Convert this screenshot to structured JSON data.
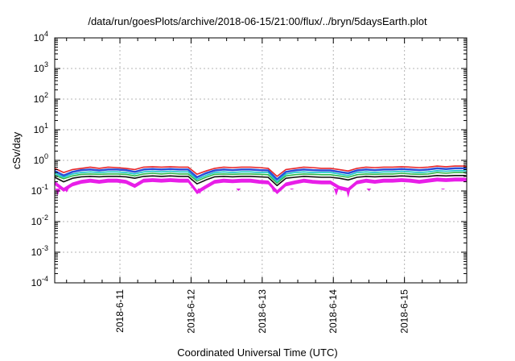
{
  "chart_data": {
    "type": "area",
    "title": "/data/run/goesPlots/archive/2018-06-15/21:00/flux/../bryn/5daysEarth.plot",
    "xlabel": "Coordinated Universal Time (UTC)",
    "ylabel": "cSv/day",
    "yscale": "log",
    "ylim": [
      0.0001,
      10000
    ],
    "y_ticks": [
      {
        "base": "10",
        "exp": "-4",
        "value": 0.0001
      },
      {
        "base": "10",
        "exp": "-3",
        "value": 0.001
      },
      {
        "base": "10",
        "exp": "-2",
        "value": 0.01
      },
      {
        "base": "10",
        "exp": "-1",
        "value": 0.1
      },
      {
        "base": "10",
        "exp": "0",
        "value": 1
      },
      {
        "base": "10",
        "exp": "1",
        "value": 10
      },
      {
        "base": "10",
        "exp": "2",
        "value": 100
      },
      {
        "base": "10",
        "exp": "3",
        "value": 1000
      },
      {
        "base": "10",
        "exp": "4",
        "value": 10000
      }
    ],
    "x_range": [
      "2018-06-10 02:00",
      "2018-06-15 21:00"
    ],
    "x_ticks": [
      "2018-6-11",
      "2018-6-12",
      "2018-6-13",
      "2018-6-14",
      "2018-6-15"
    ],
    "grid": true,
    "x": [
      "2018-06-10 02:00",
      "2018-06-10 05:00",
      "2018-06-10 08:00",
      "2018-06-10 11:00",
      "2018-06-10 14:00",
      "2018-06-10 17:00",
      "2018-06-10 20:00",
      "2018-06-10 23:00",
      "2018-06-11 02:00",
      "2018-06-11 05:00",
      "2018-06-11 08:00",
      "2018-06-11 11:00",
      "2018-06-11 14:00",
      "2018-06-11 17:00",
      "2018-06-11 20:00",
      "2018-06-11 23:00",
      "2018-06-12 02:00",
      "2018-06-12 05:00",
      "2018-06-12 08:00",
      "2018-06-12 11:00",
      "2018-06-12 14:00",
      "2018-06-12 17:00",
      "2018-06-12 20:00",
      "2018-06-12 23:00",
      "2018-06-13 02:00",
      "2018-06-13 05:00",
      "2018-06-13 08:00",
      "2018-06-13 11:00",
      "2018-06-13 14:00",
      "2018-06-13 17:00",
      "2018-06-13 20:00",
      "2018-06-13 23:00",
      "2018-06-14 02:00",
      "2018-06-14 05:00",
      "2018-06-14 08:00",
      "2018-06-14 11:00",
      "2018-06-14 14:00",
      "2018-06-14 17:00",
      "2018-06-14 20:00",
      "2018-06-14 23:00",
      "2018-06-15 02:00",
      "2018-06-15 05:00",
      "2018-06-15 08:00",
      "2018-06-15 11:00",
      "2018-06-15 14:00",
      "2018-06-15 17:00",
      "2018-06-15 20:00",
      "2018-06-15 21:00"
    ],
    "series": [
      {
        "color": "#e8262a",
        "values": [
          0.55,
          0.4,
          0.5,
          0.55,
          0.6,
          0.55,
          0.6,
          0.58,
          0.55,
          0.5,
          0.6,
          0.62,
          0.6,
          0.62,
          0.6,
          0.6,
          0.35,
          0.45,
          0.55,
          0.6,
          0.58,
          0.6,
          0.6,
          0.58,
          0.55,
          0.3,
          0.5,
          0.55,
          0.6,
          0.58,
          0.55,
          0.55,
          0.5,
          0.45,
          0.55,
          0.6,
          0.58,
          0.6,
          0.6,
          0.62,
          0.6,
          0.58,
          0.6,
          0.65,
          0.62,
          0.65,
          0.65,
          0.62
        ]
      },
      {
        "color": "#2a4fd8",
        "values": [
          0.45,
          0.32,
          0.42,
          0.48,
          0.5,
          0.47,
          0.5,
          0.5,
          0.48,
          0.42,
          0.5,
          0.52,
          0.5,
          0.52,
          0.5,
          0.5,
          0.28,
          0.38,
          0.47,
          0.5,
          0.48,
          0.5,
          0.5,
          0.48,
          0.47,
          0.24,
          0.42,
          0.47,
          0.5,
          0.48,
          0.47,
          0.47,
          0.42,
          0.38,
          0.47,
          0.5,
          0.48,
          0.5,
          0.5,
          0.52,
          0.5,
          0.48,
          0.5,
          0.55,
          0.52,
          0.55,
          0.55,
          0.52
        ]
      },
      {
        "color": "#18c8c8",
        "values": [
          0.38,
          0.28,
          0.36,
          0.4,
          0.42,
          0.4,
          0.42,
          0.42,
          0.4,
          0.36,
          0.42,
          0.44,
          0.42,
          0.44,
          0.42,
          0.42,
          0.24,
          0.32,
          0.4,
          0.42,
          0.4,
          0.42,
          0.42,
          0.4,
          0.4,
          0.2,
          0.36,
          0.4,
          0.42,
          0.4,
          0.4,
          0.4,
          0.36,
          0.32,
          0.4,
          0.42,
          0.4,
          0.42,
          0.42,
          0.44,
          0.42,
          0.4,
          0.42,
          0.46,
          0.44,
          0.46,
          0.46,
          0.44
        ]
      },
      {
        "color": "#2fb84a",
        "values": [
          0.33,
          0.25,
          0.31,
          0.35,
          0.36,
          0.35,
          0.36,
          0.36,
          0.35,
          0.31,
          0.36,
          0.38,
          0.36,
          0.38,
          0.36,
          0.36,
          0.21,
          0.28,
          0.35,
          0.36,
          0.35,
          0.36,
          0.36,
          0.35,
          0.34,
          0.18,
          0.31,
          0.34,
          0.36,
          0.35,
          0.34,
          0.34,
          0.31,
          0.28,
          0.34,
          0.36,
          0.35,
          0.36,
          0.36,
          0.38,
          0.36,
          0.35,
          0.36,
          0.4,
          0.38,
          0.4,
          0.4,
          0.38
        ]
      },
      {
        "color": "#111111",
        "values": [
          0.28,
          0.2,
          0.26,
          0.29,
          0.3,
          0.29,
          0.3,
          0.3,
          0.29,
          0.26,
          0.3,
          0.31,
          0.3,
          0.31,
          0.3,
          0.3,
          0.17,
          0.23,
          0.29,
          0.3,
          0.29,
          0.3,
          0.3,
          0.29,
          0.28,
          0.15,
          0.26,
          0.28,
          0.3,
          0.29,
          0.28,
          0.28,
          0.26,
          0.23,
          0.28,
          0.3,
          0.29,
          0.3,
          0.3,
          0.31,
          0.3,
          0.29,
          0.3,
          0.32,
          0.31,
          0.32,
          0.32,
          0.31
        ]
      },
      {
        "color": "#e81ee8",
        "values": [
          0.2,
          0.12,
          0.18,
          0.22,
          0.24,
          0.22,
          0.24,
          0.24,
          0.22,
          0.16,
          0.24,
          0.25,
          0.24,
          0.25,
          0.24,
          0.24,
          0.1,
          0.15,
          0.22,
          0.24,
          0.23,
          0.24,
          0.24,
          0.22,
          0.21,
          0.1,
          0.18,
          0.21,
          0.24,
          0.22,
          0.21,
          0.21,
          0.14,
          0.12,
          0.21,
          0.24,
          0.22,
          0.24,
          0.24,
          0.25,
          0.24,
          0.22,
          0.24,
          0.26,
          0.25,
          0.26,
          0.26,
          0.25
        ]
      }
    ],
    "minimum_dips": [
      {
        "x": "2018-06-10 03:00",
        "value": 0.07
      },
      {
        "x": "2018-06-10 06:00",
        "value": 0.09
      },
      {
        "x": "2018-06-11 07:00",
        "value": 0.12
      },
      {
        "x": "2018-06-12 03:00",
        "value": 0.08
      },
      {
        "x": "2018-06-12 16:00",
        "value": 0.1
      },
      {
        "x": "2018-06-13 04:00",
        "value": 0.09
      },
      {
        "x": "2018-06-13 10:00",
        "value": 0.11
      },
      {
        "x": "2018-06-14 01:00",
        "value": 0.07
      },
      {
        "x": "2018-06-14 05:00",
        "value": 0.06
      },
      {
        "x": "2018-06-14 12:00",
        "value": 0.1
      },
      {
        "x": "2018-06-15 13:00",
        "value": 0.11
      }
    ]
  }
}
